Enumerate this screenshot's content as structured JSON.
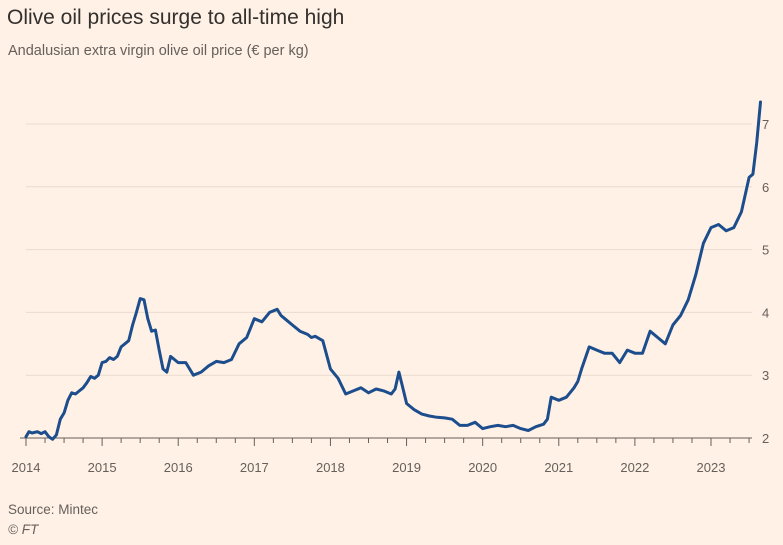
{
  "chart_data": {
    "type": "line",
    "title": "Olive oil prices surge to all-time high",
    "subtitle": "Andalusian extra virgin olive oil price (€ per kg)",
    "xlabel": "",
    "ylabel": "€ per kg",
    "ylim": [
      2,
      7.4
    ],
    "xlim": [
      2014.0,
      2023.75
    ],
    "y_ticks": [
      {
        "value": 2,
        "label": "2"
      },
      {
        "value": 3,
        "label": "3"
      },
      {
        "value": 4,
        "label": "4"
      },
      {
        "value": 5,
        "label": "5"
      },
      {
        "value": 6,
        "label": "6"
      },
      {
        "value": 7,
        "label": "7"
      }
    ],
    "x_ticks": [
      {
        "value": 2014,
        "label": "2014"
      },
      {
        "value": 2015,
        "label": "2015"
      },
      {
        "value": 2016,
        "label": "2016"
      },
      {
        "value": 2017,
        "label": "2017"
      },
      {
        "value": 2018,
        "label": "2018"
      },
      {
        "value": 2019,
        "label": "2019"
      },
      {
        "value": 2020,
        "label": "2020"
      },
      {
        "value": 2021,
        "label": "2021"
      },
      {
        "value": 2022,
        "label": "2022"
      },
      {
        "value": 2023,
        "label": "2023"
      }
    ],
    "series": [
      {
        "name": "Andalusian extra virgin olive oil price",
        "color": "#1c4d8c",
        "x": [
          2014.0,
          2014.04,
          2014.08,
          2014.15,
          2014.2,
          2014.25,
          2014.3,
          2014.35,
          2014.4,
          2014.45,
          2014.5,
          2014.55,
          2014.6,
          2014.65,
          2014.7,
          2014.75,
          2014.8,
          2014.85,
          2014.9,
          2014.95,
          2015.0,
          2015.05,
          2015.1,
          2015.15,
          2015.2,
          2015.25,
          2015.3,
          2015.35,
          2015.4,
          2015.45,
          2015.5,
          2015.55,
          2015.6,
          2015.65,
          2015.7,
          2015.75,
          2015.8,
          2015.85,
          2015.9,
          2015.95,
          2016.0,
          2016.1,
          2016.2,
          2016.3,
          2016.4,
          2016.5,
          2016.6,
          2016.7,
          2016.8,
          2016.9,
          2017.0,
          2017.1,
          2017.2,
          2017.3,
          2017.35,
          2017.4,
          2017.5,
          2017.6,
          2017.7,
          2017.75,
          2017.8,
          2017.9,
          2018.0,
          2018.1,
          2018.2,
          2018.3,
          2018.4,
          2018.5,
          2018.6,
          2018.7,
          2018.8,
          2018.85,
          2018.9,
          2018.95,
          2019.0,
          2019.1,
          2019.2,
          2019.3,
          2019.4,
          2019.5,
          2019.6,
          2019.7,
          2019.8,
          2019.9,
          2020.0,
          2020.1,
          2020.2,
          2020.3,
          2020.4,
          2020.5,
          2020.6,
          2020.7,
          2020.8,
          2020.85,
          2020.9,
          2021.0,
          2021.1,
          2021.2,
          2021.25,
          2021.3,
          2021.4,
          2021.5,
          2021.6,
          2021.7,
          2021.8,
          2021.9,
          2022.0,
          2022.1,
          2022.2,
          2022.3,
          2022.4,
          2022.5,
          2022.6,
          2022.7,
          2022.8,
          2022.85,
          2022.9,
          2023.0,
          2023.1,
          2023.2,
          2023.3,
          2023.4,
          2023.5,
          2023.55,
          2023.6,
          2023.65
        ],
        "values": [
          2.02,
          2.1,
          2.08,
          2.1,
          2.07,
          2.1,
          2.02,
          1.98,
          2.05,
          2.3,
          2.4,
          2.6,
          2.72,
          2.7,
          2.75,
          2.8,
          2.88,
          2.98,
          2.95,
          3.0,
          3.2,
          3.22,
          3.28,
          3.25,
          3.3,
          3.45,
          3.5,
          3.55,
          3.8,
          4.0,
          4.22,
          4.2,
          3.9,
          3.7,
          3.72,
          3.4,
          3.1,
          3.05,
          3.3,
          3.25,
          3.2,
          3.2,
          3.0,
          3.05,
          3.15,
          3.22,
          3.2,
          3.25,
          3.5,
          3.6,
          3.9,
          3.85,
          4.0,
          4.05,
          3.95,
          3.9,
          3.8,
          3.7,
          3.65,
          3.6,
          3.62,
          3.55,
          3.1,
          2.95,
          2.7,
          2.75,
          2.8,
          2.72,
          2.78,
          2.75,
          2.7,
          2.78,
          3.05,
          2.8,
          2.55,
          2.45,
          2.38,
          2.35,
          2.33,
          2.32,
          2.3,
          2.2,
          2.2,
          2.25,
          2.15,
          2.18,
          2.2,
          2.18,
          2.2,
          2.15,
          2.12,
          2.18,
          2.22,
          2.3,
          2.65,
          2.6,
          2.65,
          2.8,
          2.9,
          3.1,
          3.45,
          3.4,
          3.35,
          3.35,
          3.2,
          3.4,
          3.35,
          3.35,
          3.7,
          3.6,
          3.5,
          3.8,
          3.95,
          4.2,
          4.6,
          4.85,
          5.1,
          5.35,
          5.4,
          5.3,
          5.35,
          5.6,
          6.15,
          6.2,
          6.7,
          7.35
        ]
      }
    ]
  },
  "footer": {
    "source": "Source: Mintec",
    "credit": "© FT"
  },
  "colors": {
    "background": "#fff1e5",
    "line": "#1c4d8c",
    "grid": "#e9dbcf",
    "axis": "#66605c"
  }
}
